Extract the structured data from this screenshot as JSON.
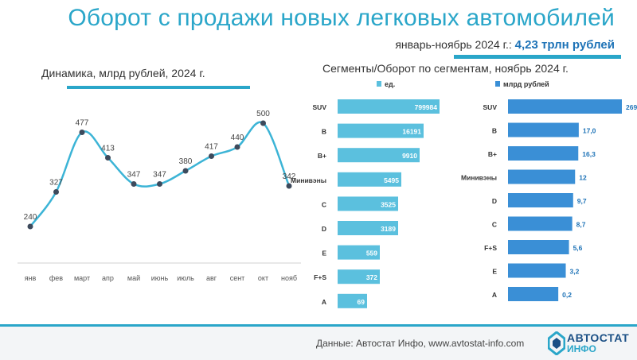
{
  "header": {
    "title": "Оборот с продажи новых легковых автомобилей",
    "subtitle_prefix": "январь-ноябрь 2024 г.: ",
    "subtitle_value": "4,23 трлн рублей"
  },
  "footer": {
    "source": "Данные: Автостат Инфо, www.avtostat-info.com",
    "logo_line1": "АВТОСТАТ",
    "logo_line2": "ИНФО",
    "logo_tagline": "АНАЛИТИКА\nКАК ЦЕЛЬ"
  },
  "colors": {
    "accent": "#2aa6c9",
    "units_bar": "#5bc0de",
    "rub_bar": "#3a8fd6",
    "line": "#3cb4d6",
    "point": "#3d4a5c",
    "value_blue": "#1e73b7"
  },
  "chart_data": [
    {
      "type": "line",
      "title": "Динамика, млрд рублей, 2024 г.",
      "categories": [
        "янв",
        "фев",
        "март",
        "апр",
        "май",
        "июнь",
        "июль",
        "авг",
        "сент",
        "окт",
        "нояб"
      ],
      "values": [
        240,
        327,
        477,
        413,
        347,
        347,
        380,
        417,
        440,
        500,
        342
      ],
      "value_labels": [
        "240",
        "327",
        "477",
        "413",
        "347",
        "347",
        "380",
        "417",
        "440",
        "500",
        "342"
      ]
    },
    {
      "type": "bar",
      "orientation": "horizontal",
      "title": "Сегменты/Оборот по сегментам, ноябрь 2024 г.",
      "legend": "ед.",
      "categories": [
        "SUV",
        "B",
        "B+",
        "Минивэны",
        "C",
        "D",
        "E",
        "F+S",
        "A"
      ],
      "values": [
        799984,
        16191,
        9910,
        5495,
        3525,
        3189,
        559,
        372,
        69
      ],
      "value_labels": [
        "799984",
        "16191",
        "9910",
        "5495",
        "3525",
        "3189",
        "559",
        "372",
        "69"
      ]
    },
    {
      "type": "bar",
      "orientation": "horizontal",
      "legend": "млрд рублей",
      "categories": [
        "SUV",
        "B",
        "B+",
        "Минивэны",
        "D",
        "C",
        "F+S",
        "E",
        "A"
      ],
      "values": [
        269.3,
        17.0,
        16.3,
        12,
        9.7,
        8.7,
        5.6,
        3.2,
        0.2
      ],
      "value_labels": [
        "269,3",
        "17,0",
        "16,3",
        "12",
        "9,7",
        "8,7",
        "5,6",
        "3,2",
        "0,2"
      ]
    }
  ]
}
